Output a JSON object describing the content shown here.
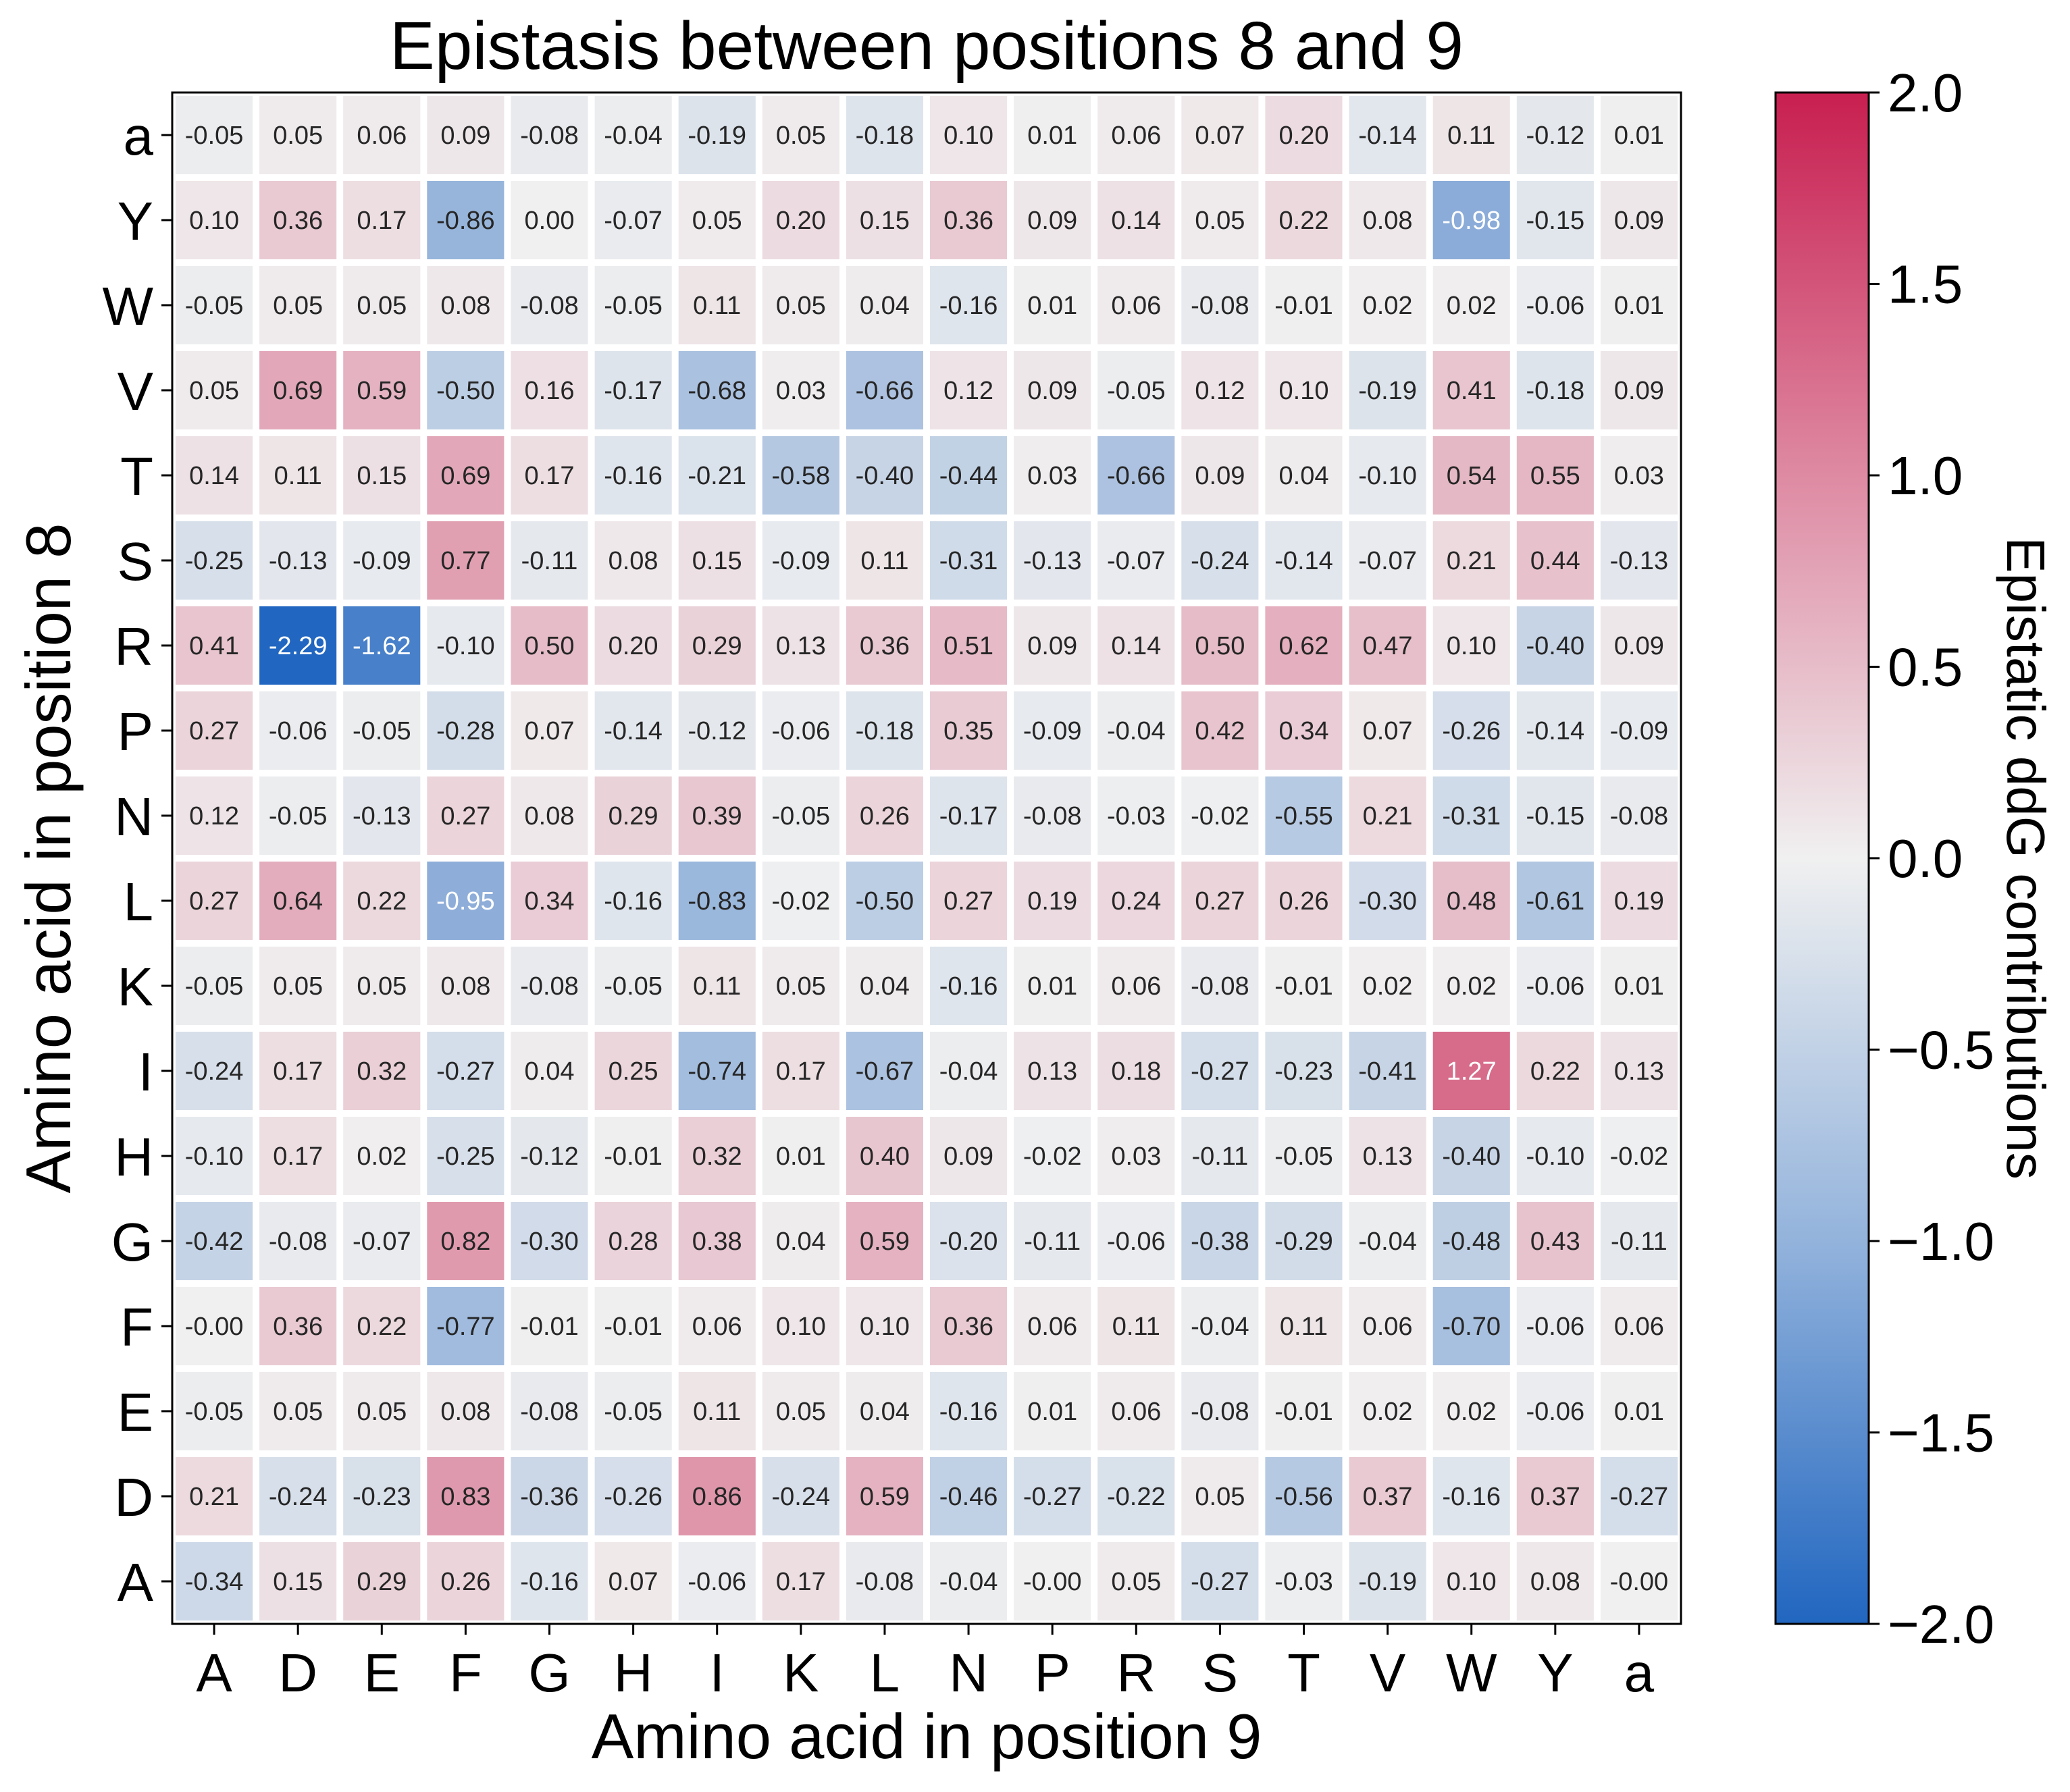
{
  "chart_data": {
    "type": "heatmap",
    "title": "Epistasis between positions 8 and 9",
    "xlabel": "Amino acid in position 9",
    "ylabel": "Amino acid in position 8",
    "colorbar_label": "Epistatic ddG contributions",
    "colorbar_range": [
      -2.0,
      2.0
    ],
    "colorbar_ticks": [
      "2.0",
      "1.5",
      "1.0",
      "0.5",
      "0.0",
      "−0.5",
      "−1.0",
      "−1.5",
      "−2.0"
    ],
    "colors": {
      "low": "#2166c0",
      "mid": "#f0f0f0",
      "high": "#c81f50"
    },
    "x_categories": [
      "A",
      "D",
      "E",
      "F",
      "G",
      "H",
      "I",
      "K",
      "L",
      "N",
      "P",
      "R",
      "S",
      "T",
      "V",
      "W",
      "Y",
      "a"
    ],
    "y_categories": [
      "a",
      "Y",
      "W",
      "V",
      "T",
      "S",
      "R",
      "P",
      "N",
      "L",
      "K",
      "I",
      "H",
      "G",
      "F",
      "E",
      "D",
      "A"
    ],
    "values": [
      [
        "-0.05",
        "0.05",
        "0.06",
        "0.09",
        "-0.08",
        "-0.04",
        "-0.19",
        "0.05",
        "-0.18",
        "0.10",
        "0.01",
        "0.06",
        "0.07",
        "0.20",
        "-0.14",
        "0.11",
        "-0.12",
        "0.01"
      ],
      [
        "0.10",
        "0.36",
        "0.17",
        "-0.86",
        "0.00",
        "-0.07",
        "0.05",
        "0.20",
        "0.15",
        "0.36",
        "0.09",
        "0.14",
        "0.05",
        "0.22",
        "0.08",
        "-0.98",
        "-0.15",
        "0.09"
      ],
      [
        "-0.05",
        "0.05",
        "0.05",
        "0.08",
        "-0.08",
        "-0.05",
        "0.11",
        "0.05",
        "0.04",
        "-0.16",
        "0.01",
        "0.06",
        "-0.08",
        "-0.01",
        "0.02",
        "0.02",
        "-0.06",
        "0.01"
      ],
      [
        "0.05",
        "0.69",
        "0.59",
        "-0.50",
        "0.16",
        "-0.17",
        "-0.68",
        "0.03",
        "-0.66",
        "0.12",
        "0.09",
        "-0.05",
        "0.12",
        "0.10",
        "-0.19",
        "0.41",
        "-0.18",
        "0.09"
      ],
      [
        "0.14",
        "0.11",
        "0.15",
        "0.69",
        "0.17",
        "-0.16",
        "-0.21",
        "-0.58",
        "-0.40",
        "-0.44",
        "0.03",
        "-0.66",
        "0.09",
        "0.04",
        "-0.10",
        "0.54",
        "0.55",
        "0.03"
      ],
      [
        "-0.25",
        "-0.13",
        "-0.09",
        "0.77",
        "-0.11",
        "0.08",
        "0.15",
        "-0.09",
        "0.11",
        "-0.31",
        "-0.13",
        "-0.07",
        "-0.24",
        "-0.14",
        "-0.07",
        "0.21",
        "0.44",
        "-0.13"
      ],
      [
        "0.41",
        "-2.29",
        "-1.62",
        "-0.10",
        "0.50",
        "0.20",
        "0.29",
        "0.13",
        "0.36",
        "0.51",
        "0.09",
        "0.14",
        "0.50",
        "0.62",
        "0.47",
        "0.10",
        "-0.40",
        "0.09"
      ],
      [
        "0.27",
        "-0.06",
        "-0.05",
        "-0.28",
        "0.07",
        "-0.14",
        "-0.12",
        "-0.06",
        "-0.18",
        "0.35",
        "-0.09",
        "-0.04",
        "0.42",
        "0.34",
        "0.07",
        "-0.26",
        "-0.14",
        "-0.09"
      ],
      [
        "0.12",
        "-0.05",
        "-0.13",
        "0.27",
        "0.08",
        "0.29",
        "0.39",
        "-0.05",
        "0.26",
        "-0.17",
        "-0.08",
        "-0.03",
        "-0.02",
        "-0.55",
        "0.21",
        "-0.31",
        "-0.15",
        "-0.08"
      ],
      [
        "0.27",
        "0.64",
        "0.22",
        "-0.95",
        "0.34",
        "-0.16",
        "-0.83",
        "-0.02",
        "-0.50",
        "0.27",
        "0.19",
        "0.24",
        "0.27",
        "0.26",
        "-0.30",
        "0.48",
        "-0.61",
        "0.19"
      ],
      [
        "-0.05",
        "0.05",
        "0.05",
        "0.08",
        "-0.08",
        "-0.05",
        "0.11",
        "0.05",
        "0.04",
        "-0.16",
        "0.01",
        "0.06",
        "-0.08",
        "-0.01",
        "0.02",
        "0.02",
        "-0.06",
        "0.01"
      ],
      [
        "-0.24",
        "0.17",
        "0.32",
        "-0.27",
        "0.04",
        "0.25",
        "-0.74",
        "0.17",
        "-0.67",
        "-0.04",
        "0.13",
        "0.18",
        "-0.27",
        "-0.23",
        "-0.41",
        "1.27",
        "0.22",
        "0.13"
      ],
      [
        "-0.10",
        "0.17",
        "0.02",
        "-0.25",
        "-0.12",
        "-0.01",
        "0.32",
        "0.01",
        "0.40",
        "0.09",
        "-0.02",
        "0.03",
        "-0.11",
        "-0.05",
        "0.13",
        "-0.40",
        "-0.10",
        "-0.02"
      ],
      [
        "-0.42",
        "-0.08",
        "-0.07",
        "0.82",
        "-0.30",
        "0.28",
        "0.38",
        "0.04",
        "0.59",
        "-0.20",
        "-0.11",
        "-0.06",
        "-0.38",
        "-0.29",
        "-0.04",
        "-0.48",
        "0.43",
        "-0.11"
      ],
      [
        "-0.00",
        "0.36",
        "0.22",
        "-0.77",
        "-0.01",
        "-0.01",
        "0.06",
        "0.10",
        "0.10",
        "0.36",
        "0.06",
        "0.11",
        "-0.04",
        "0.11",
        "0.06",
        "-0.70",
        "-0.06",
        "0.06"
      ],
      [
        "-0.05",
        "0.05",
        "0.05",
        "0.08",
        "-0.08",
        "-0.05",
        "0.11",
        "0.05",
        "0.04",
        "-0.16",
        "0.01",
        "0.06",
        "-0.08",
        "-0.01",
        "0.02",
        "0.02",
        "-0.06",
        "0.01"
      ],
      [
        "0.21",
        "-0.24",
        "-0.23",
        "0.83",
        "-0.36",
        "-0.26",
        "0.86",
        "-0.24",
        "0.59",
        "-0.46",
        "-0.27",
        "-0.22",
        "0.05",
        "-0.56",
        "0.37",
        "-0.16",
        "0.37",
        "-0.27"
      ],
      [
        "-0.34",
        "0.15",
        "0.29",
        "0.26",
        "-0.16",
        "0.07",
        "-0.06",
        "0.17",
        "-0.08",
        "-0.04",
        "-0.00",
        "0.05",
        "-0.27",
        "-0.03",
        "-0.19",
        "0.10",
        "0.08",
        "-0.00"
      ]
    ]
  }
}
